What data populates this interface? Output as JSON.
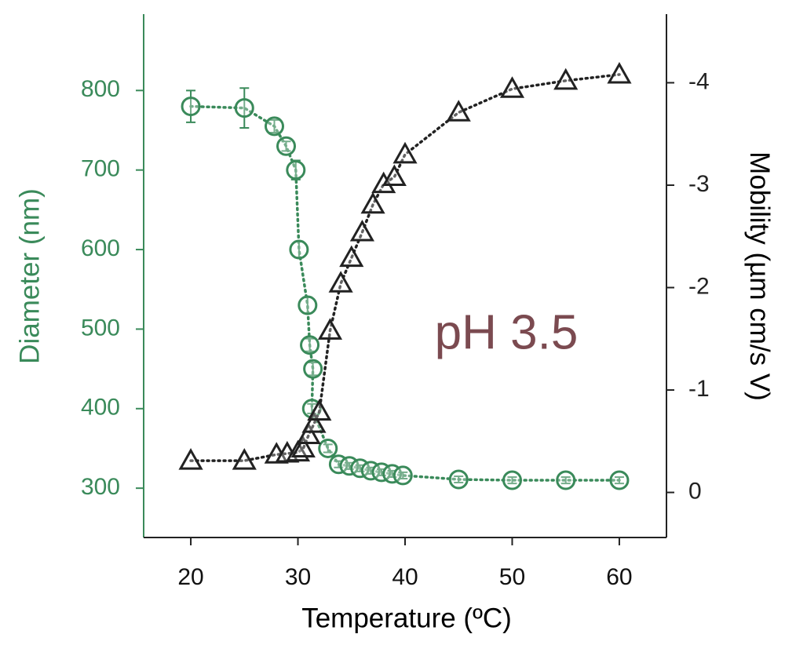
{
  "chart_data": {
    "type": "scatter",
    "xlabel": "Temperature (ºC)",
    "ylabel": "Diameter (nm)",
    "y2label": "Mobility (µm cm/s V)",
    "annotation": "pH 3.5",
    "annotation_color": "#7b4a50",
    "y_axis_color": "#3a8a5a",
    "y2_axis_color": "#222222",
    "xlim": [
      15.6,
      64.4
    ],
    "xticks": [
      20,
      30,
      40,
      50,
      60
    ],
    "ylim": [
      238,
      896
    ],
    "yticks": [
      300,
      400,
      500,
      600,
      700,
      800
    ],
    "y2lim": [
      0.44,
      -4.67
    ],
    "y2ticks": [
      0,
      -1,
      -2,
      -3,
      -4
    ],
    "series": [
      {
        "color": "#3a8a5a",
        "marker": "circle",
        "axis": "y",
        "x": [
          20,
          25,
          27.8,
          28.9,
          29.8,
          30.1,
          30.9,
          31.1,
          31.4,
          31.3,
          32.8,
          33.8,
          34.8,
          35.8,
          36.8,
          37.8,
          38.8,
          39.8,
          45,
          50,
          55,
          60
        ],
        "values": [
          780,
          778,
          755,
          730,
          700,
          600,
          530,
          480,
          450,
          400,
          350,
          330,
          328,
          325,
          322,
          320,
          318,
          316,
          311,
          310,
          310,
          310
        ],
        "errors": [
          20,
          25,
          8,
          6,
          12,
          10,
          10,
          8,
          8,
          6,
          5,
          4,
          4,
          4,
          4,
          4,
          4,
          4,
          4,
          4,
          4,
          4
        ]
      },
      {
        "color": "#222222",
        "marker": "triangle",
        "axis": "y2",
        "x": [
          20,
          25,
          28,
          29,
          30,
          30.5,
          31,
          31.5,
          32,
          33,
          34,
          35,
          36,
          37,
          38,
          39,
          40,
          45,
          50,
          55,
          60
        ],
        "values": [
          -0.31,
          -0.31,
          -0.37,
          -0.38,
          -0.39,
          -0.43,
          -0.56,
          -0.67,
          -0.79,
          -1.58,
          -2.04,
          -2.29,
          -2.54,
          -2.81,
          -3.01,
          -3.08,
          -3.3,
          -3.71,
          -3.94,
          -4.02,
          -4.08
        ]
      }
    ]
  }
}
